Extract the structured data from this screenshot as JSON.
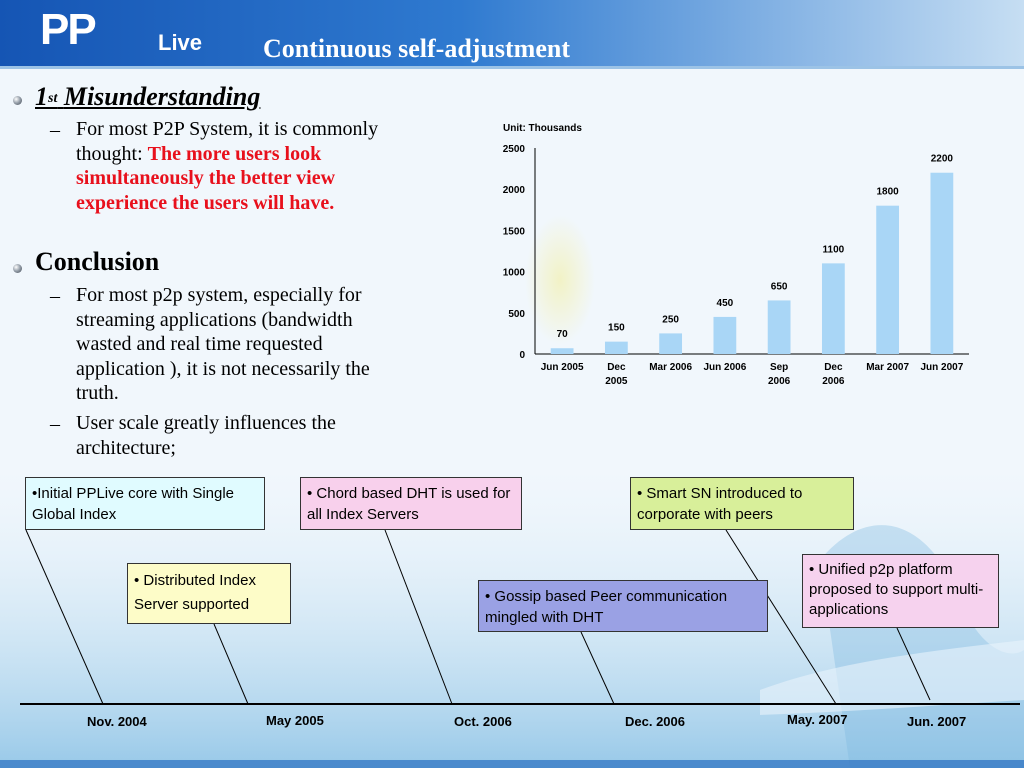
{
  "header": {
    "logo_main": "PP",
    "logo_sub": "Live",
    "title": "Continuous self-adjustment"
  },
  "left": {
    "bullet1": {
      "num": "1",
      "sup": "st",
      "text": "Misunderstanding"
    },
    "sub1": {
      "text": "For most P2P System, it  is commonly  thought: ",
      "highlight": "The more users look simultaneously the better view experience the users will have."
    },
    "bullet2": "Conclusion",
    "sub2a": "For most p2p system, especially for streaming applications (bandwidth wasted and real time requested application ), it is not necessarily the truth.",
    "sub2b": "User scale greatly influences the architecture;",
    "dash": "–"
  },
  "chart_data": {
    "type": "bar",
    "unit_label": "Unit: Thousands",
    "categories": [
      "Jun 2005",
      "Dec 2005",
      "Mar 2006",
      "Jun 2006",
      "Sep 2006",
      "Dec 2006",
      "Mar 2007",
      "Jun 2007"
    ],
    "values": [
      70,
      150,
      250,
      450,
      650,
      1100,
      1800,
      2200
    ],
    "ylim": [
      0,
      2500
    ],
    "yticks": [
      0,
      500,
      1000,
      1500,
      2000,
      2500
    ],
    "bar_color": "#a9d6f6",
    "grid": false
  },
  "timeline": {
    "top_boxes": [
      {
        "text": "•Initial PPLive core with Single Global Index",
        "bg": "#e0fbff"
      },
      {
        "text": "• Chord based DHT is used for all Index Servers",
        "bg": "#f8d0ec"
      },
      {
        "text": "• Smart SN introduced to corporate with peers",
        "bg": "#d8ef9a"
      }
    ],
    "bottom_boxes": [
      {
        "text": "• Distributed Index Server supported",
        "bg": "#fdfcc8"
      },
      {
        "text": "• Gossip based Peer communication mingled with DHT",
        "bg": "#9aa1e4"
      },
      {
        "text": "• Unified p2p platform proposed to support multi-applications",
        "bg": "#f6d2ee"
      }
    ],
    "dates": [
      "Nov. 2004",
      "May 2005",
      "Oct. 2006",
      "Dec. 2006",
      "May. 2007",
      "Jun. 2007"
    ]
  }
}
